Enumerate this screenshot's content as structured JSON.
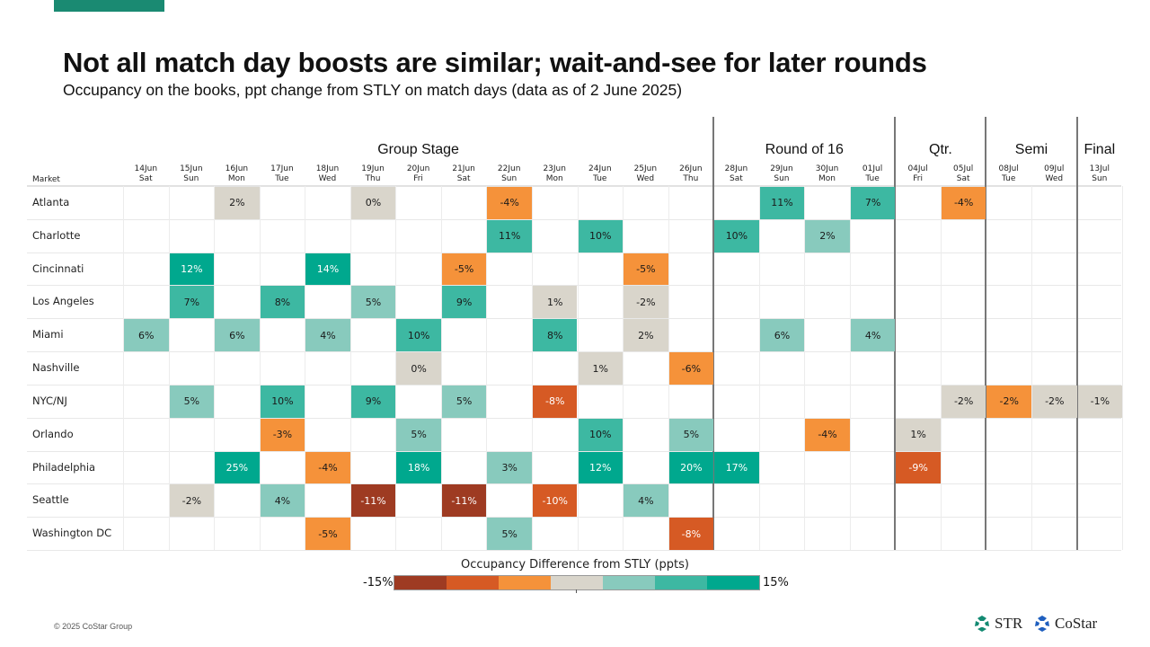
{
  "header": {
    "title": "Not all match day boosts are similar; wait-and-see for later rounds",
    "subtitle": "Occupancy on the books, ppt change from STLY on match days (data as of 2 June 2025)"
  },
  "colors": {
    "accent": "#1a8a72",
    "bins": [
      "#9e3b22",
      "#d65a24",
      "#f5923a",
      "#d9d5cb",
      "#88cabd",
      "#3db8a2",
      "#00a88e"
    ],
    "empty": "#ffffff"
  },
  "chart_data": {
    "type": "heatmap",
    "title": "Not all match day boosts are similar; wait-and-see for later rounds",
    "subtitle": "Occupancy on the books, ppt change from STLY on match days (data as of 2 June 2025)",
    "row_header": "Market",
    "stages": [
      {
        "label": "Group Stage",
        "from": 0,
        "to": 12
      },
      {
        "label": "Round of 16",
        "from": 13,
        "to": 16
      },
      {
        "label": "Qtr.",
        "from": 17,
        "to": 18
      },
      {
        "label": "Semi",
        "from": 19,
        "to": 20
      },
      {
        "label": "Final",
        "from": 21,
        "to": 21
      }
    ],
    "columns": [
      {
        "date": "14Jun",
        "day": "Sat"
      },
      {
        "date": "15Jun",
        "day": "Sun"
      },
      {
        "date": "16Jun",
        "day": "Mon"
      },
      {
        "date": "17Jun",
        "day": "Tue"
      },
      {
        "date": "18Jun",
        "day": "Wed"
      },
      {
        "date": "19Jun",
        "day": "Thu"
      },
      {
        "date": "20Jun",
        "day": "Fri"
      },
      {
        "date": "21Jun",
        "day": "Sat"
      },
      {
        "date": "22Jun",
        "day": "Sun"
      },
      {
        "date": "23Jun",
        "day": "Mon"
      },
      {
        "date": "24Jun",
        "day": "Tue"
      },
      {
        "date": "25Jun",
        "day": "Wed"
      },
      {
        "date": "26Jun",
        "day": "Thu"
      },
      {
        "date": "28Jun",
        "day": "Sat"
      },
      {
        "date": "29Jun",
        "day": "Sun"
      },
      {
        "date": "30Jun",
        "day": "Mon"
      },
      {
        "date": "01Jul",
        "day": "Tue"
      },
      {
        "date": "04Jul",
        "day": "Fri"
      },
      {
        "date": "05Jul",
        "day": "Sat"
      },
      {
        "date": "08Jul",
        "day": "Tue"
      },
      {
        "date": "09Jul",
        "day": "Wed"
      },
      {
        "date": "13Jul",
        "day": "Sun"
      }
    ],
    "rows": [
      {
        "market": "Atlanta",
        "cells": [
          [
            2,
            "2%",
            3
          ],
          [
            5,
            "0%",
            3
          ],
          [
            8,
            "-4%",
            2
          ],
          [
            14,
            "11%",
            5
          ],
          [
            16,
            "7%",
            5
          ],
          [
            18,
            "-4%",
            2
          ]
        ]
      },
      {
        "market": "Charlotte",
        "cells": [
          [
            8,
            "11%",
            5
          ],
          [
            10,
            "10%",
            5
          ],
          [
            13,
            "10%",
            5
          ],
          [
            15,
            "2%",
            4
          ]
        ]
      },
      {
        "market": "Cincinnati",
        "cells": [
          [
            1,
            "12%",
            6
          ],
          [
            4,
            "14%",
            6
          ],
          [
            7,
            "-5%",
            2
          ],
          [
            11,
            "-5%",
            2
          ]
        ]
      },
      {
        "market": "Los Angeles",
        "cells": [
          [
            1,
            "7%",
            5
          ],
          [
            3,
            "8%",
            5
          ],
          [
            5,
            "5%",
            4
          ],
          [
            7,
            "9%",
            5
          ],
          [
            9,
            "1%",
            3
          ],
          [
            11,
            "-2%",
            3
          ]
        ]
      },
      {
        "market": "Miami",
        "cells": [
          [
            0,
            "6%",
            4
          ],
          [
            2,
            "6%",
            4
          ],
          [
            4,
            "4%",
            4
          ],
          [
            6,
            "10%",
            5
          ],
          [
            9,
            "8%",
            5
          ],
          [
            11,
            "2%",
            3
          ],
          [
            14,
            "6%",
            4
          ],
          [
            16,
            "4%",
            4
          ]
        ]
      },
      {
        "market": "Nashville",
        "cells": [
          [
            6,
            "0%",
            3
          ],
          [
            10,
            "1%",
            3
          ],
          [
            12,
            "-6%",
            2
          ]
        ]
      },
      {
        "market": "NYC/NJ",
        "cells": [
          [
            1,
            "5%",
            4
          ],
          [
            3,
            "10%",
            5
          ],
          [
            5,
            "9%",
            5
          ],
          [
            7,
            "5%",
            4
          ],
          [
            9,
            "-8%",
            1
          ],
          [
            18,
            "-2%",
            3
          ],
          [
            19,
            "-2%",
            2
          ],
          [
            20,
            "-2%",
            3
          ],
          [
            21,
            "-1%",
            3
          ]
        ]
      },
      {
        "market": "Orlando",
        "cells": [
          [
            3,
            "-3%",
            2
          ],
          [
            6,
            "5%",
            4
          ],
          [
            10,
            "10%",
            5
          ],
          [
            12,
            "5%",
            4
          ],
          [
            15,
            "-4%",
            2
          ],
          [
            17,
            "1%",
            3
          ]
        ]
      },
      {
        "market": "Philadelphia",
        "cells": [
          [
            2,
            "25%",
            6
          ],
          [
            4,
            "-4%",
            2
          ],
          [
            6,
            "18%",
            6
          ],
          [
            8,
            "3%",
            4
          ],
          [
            10,
            "12%",
            6
          ],
          [
            12,
            "20%",
            6
          ],
          [
            13,
            "17%",
            6
          ],
          [
            17,
            "-9%",
            1
          ]
        ]
      },
      {
        "market": "Seattle",
        "cells": [
          [
            1,
            "-2%",
            3
          ],
          [
            3,
            "4%",
            4
          ],
          [
            5,
            "-11%",
            0
          ],
          [
            7,
            "-11%",
            0
          ],
          [
            9,
            "-10%",
            1
          ],
          [
            11,
            "4%",
            4
          ]
        ]
      },
      {
        "market": "Washington DC",
        "cells": [
          [
            4,
            "-5%",
            2
          ],
          [
            8,
            "5%",
            4
          ],
          [
            12,
            "-8%",
            1
          ]
        ]
      }
    ],
    "legend": {
      "title": "Occupancy Difference from STLY (ppts)",
      "min_label": "-15%",
      "max_label": "15%",
      "range": [
        -15,
        15
      ]
    }
  },
  "footer": {
    "copyright": "© 2025 CoStar Group",
    "logo_str": "STR",
    "logo_costar": "CoStar"
  }
}
